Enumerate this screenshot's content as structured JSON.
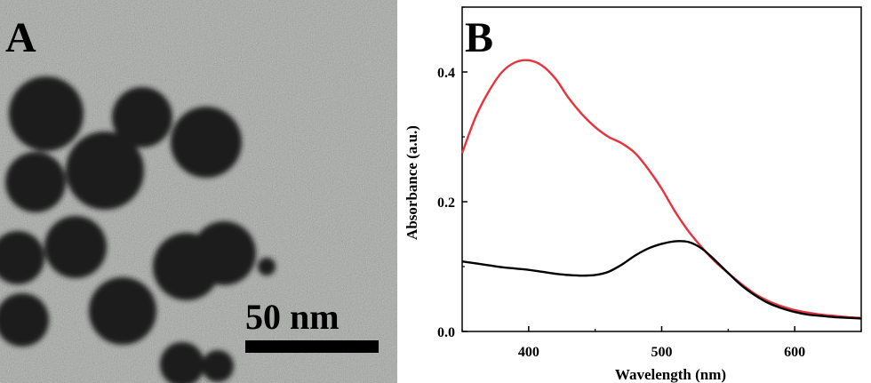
{
  "panel_a": {
    "label": "A",
    "scale_bar_label": "50 nm"
  },
  "panel_b": {
    "label": "B"
  },
  "chart_data": {
    "type": "line",
    "title": "",
    "xlabel": "Wavelength (nm)",
    "ylabel": "Absorbance (a.u.)",
    "xlim": [
      350,
      650
    ],
    "ylim": [
      0.0,
      0.5
    ],
    "xticks": [
      400,
      500,
      600
    ],
    "yticks": [
      0.0,
      0.2,
      0.4
    ],
    "xtick_labels": [
      "400",
      "500",
      "600"
    ],
    "ytick_labels": [
      "0.0",
      "0.2",
      "0.4"
    ],
    "grid": false,
    "series": [
      {
        "color": "#e8323c",
        "x": [
          350,
          360,
          370,
          380,
          390,
          400,
          410,
          420,
          430,
          440,
          450,
          460,
          470,
          480,
          490,
          500,
          510,
          520,
          530,
          540,
          550,
          560,
          570,
          580,
          590,
          600,
          610,
          620,
          630,
          640,
          650
        ],
        "y": [
          0.275,
          0.33,
          0.37,
          0.4,
          0.415,
          0.418,
          0.41,
          0.39,
          0.36,
          0.335,
          0.315,
          0.3,
          0.29,
          0.275,
          0.25,
          0.22,
          0.185,
          0.155,
          0.13,
          0.108,
          0.09,
          0.073,
          0.058,
          0.047,
          0.039,
          0.033,
          0.029,
          0.026,
          0.024,
          0.022,
          0.021
        ]
      },
      {
        "color": "#000000",
        "x": [
          350,
          360,
          370,
          380,
          390,
          400,
          410,
          420,
          430,
          440,
          450,
          460,
          470,
          480,
          490,
          500,
          510,
          520,
          530,
          540,
          550,
          560,
          570,
          580,
          590,
          600,
          610,
          620,
          630,
          640,
          650
        ],
        "y": [
          0.108,
          0.105,
          0.102,
          0.099,
          0.097,
          0.095,
          0.092,
          0.089,
          0.087,
          0.086,
          0.087,
          0.092,
          0.103,
          0.117,
          0.128,
          0.135,
          0.139,
          0.138,
          0.128,
          0.11,
          0.09,
          0.071,
          0.056,
          0.044,
          0.036,
          0.03,
          0.026,
          0.024,
          0.022,
          0.021,
          0.02
        ]
      }
    ]
  }
}
